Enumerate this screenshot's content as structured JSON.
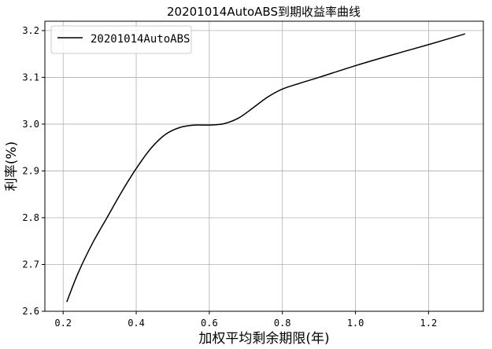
{
  "chart_data": {
    "type": "line",
    "title": "20201014AutoABS到期收益率曲线",
    "xlabel": "加权平均剩余期限(年)",
    "ylabel": "利率(%)",
    "xlim": [
      0.15,
      1.35
    ],
    "ylim": [
      2.6,
      3.22
    ],
    "xticks": [
      0.2,
      0.4,
      0.6,
      0.8,
      1.0,
      1.2
    ],
    "xtick_labels": [
      "0.2",
      "0.4",
      "0.6",
      "0.8",
      "1.0",
      "1.2"
    ],
    "yticks": [
      2.6,
      2.7,
      2.8,
      2.9,
      3.0,
      3.1,
      3.2
    ],
    "ytick_labels": [
      "2.6",
      "2.7",
      "2.8",
      "2.9",
      "3.0",
      "3.1",
      "3.2"
    ],
    "grid": true,
    "legend_position": "top-left",
    "series": [
      {
        "name": "20201014AutoABS",
        "color": "#000000",
        "x": [
          0.21,
          0.24,
          0.28,
          0.32,
          0.36,
          0.4,
          0.44,
          0.48,
          0.52,
          0.56,
          0.6,
          0.64,
          0.68,
          0.72,
          0.76,
          0.8,
          0.85,
          0.9,
          1.0,
          1.1,
          1.2,
          1.3
        ],
        "y": [
          2.62,
          2.68,
          2.745,
          2.8,
          2.855,
          2.905,
          2.948,
          2.978,
          2.993,
          2.998,
          2.998,
          3.001,
          3.013,
          3.035,
          3.058,
          3.075,
          3.088,
          3.1,
          3.125,
          3.148,
          3.17,
          3.193
        ]
      }
    ]
  }
}
